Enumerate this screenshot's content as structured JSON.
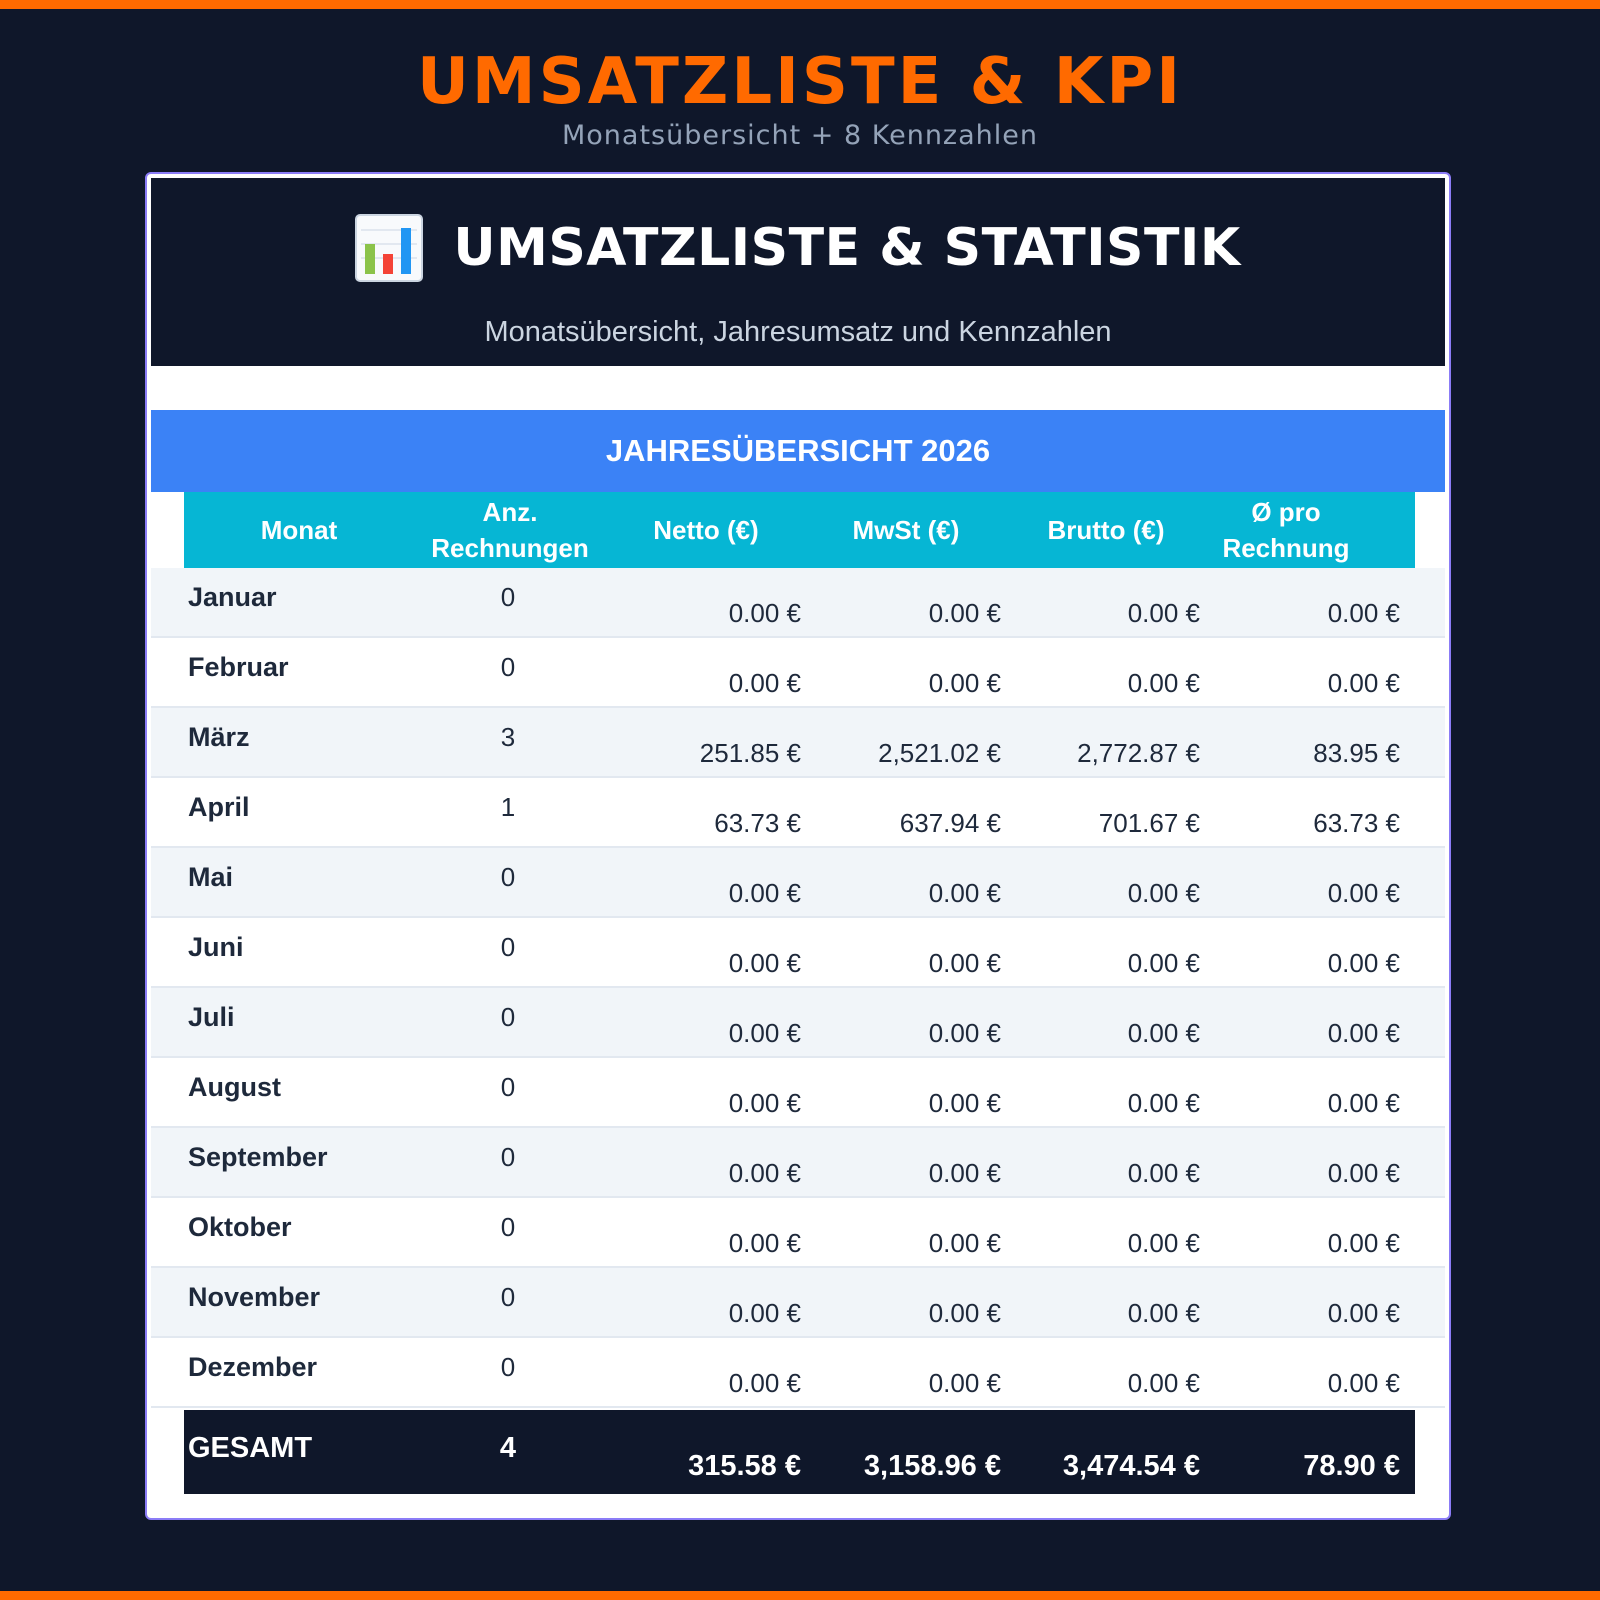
{
  "page": {
    "title": "UMSATZLISTE & KPI",
    "subtitle": "Monatsübersicht + 8 Kennzahlen"
  },
  "sheet": {
    "icon": "bar-chart-icon",
    "title": "UMSATZLISTE & STATISTIK",
    "subtitle": "Monatsübersicht, Jahresumsatz und Kennzahlen",
    "year_band": "JAHRESÜBERSICHT 2026"
  },
  "colors": {
    "accent": "#ff6a00",
    "background": "#0f172a",
    "band": "#3b82f6",
    "header": "#06b6d4"
  },
  "table": {
    "columns": {
      "month": "Monat",
      "count": "Anz. Rechnungen",
      "net": "Netto (€)",
      "vat": "MwSt (€)",
      "gross": "Brutto (€)",
      "avg": "Ø pro Rechnung"
    },
    "rows": [
      {
        "month": "Januar",
        "count": "0",
        "net": "0.00 €",
        "vat": "0.00 €",
        "gross": "0.00 €",
        "avg": "0.00 €"
      },
      {
        "month": "Februar",
        "count": "0",
        "net": "0.00 €",
        "vat": "0.00 €",
        "gross": "0.00 €",
        "avg": "0.00 €"
      },
      {
        "month": "März",
        "count": "3",
        "net": "251.85 €",
        "vat": "2,521.02 €",
        "gross": "2,772.87 €",
        "avg": "83.95 €"
      },
      {
        "month": "April",
        "count": "1",
        "net": "63.73 €",
        "vat": "637.94 €",
        "gross": "701.67 €",
        "avg": "63.73 €"
      },
      {
        "month": "Mai",
        "count": "0",
        "net": "0.00 €",
        "vat": "0.00 €",
        "gross": "0.00 €",
        "avg": "0.00 €"
      },
      {
        "month": "Juni",
        "count": "0",
        "net": "0.00 €",
        "vat": "0.00 €",
        "gross": "0.00 €",
        "avg": "0.00 €"
      },
      {
        "month": "Juli",
        "count": "0",
        "net": "0.00 €",
        "vat": "0.00 €",
        "gross": "0.00 €",
        "avg": "0.00 €"
      },
      {
        "month": "August",
        "count": "0",
        "net": "0.00 €",
        "vat": "0.00 €",
        "gross": "0.00 €",
        "avg": "0.00 €"
      },
      {
        "month": "September",
        "count": "0",
        "net": "0.00 €",
        "vat": "0.00 €",
        "gross": "0.00 €",
        "avg": "0.00 €"
      },
      {
        "month": "Oktober",
        "count": "0",
        "net": "0.00 €",
        "vat": "0.00 €",
        "gross": "0.00 €",
        "avg": "0.00 €"
      },
      {
        "month": "November",
        "count": "0",
        "net": "0.00 €",
        "vat": "0.00 €",
        "gross": "0.00 €",
        "avg": "0.00 €"
      },
      {
        "month": "Dezember",
        "count": "0",
        "net": "0.00 €",
        "vat": "0.00 €",
        "gross": "0.00 €",
        "avg": "0.00 €"
      }
    ],
    "total": {
      "label": "GESAMT",
      "count": "4",
      "net": "315.58 €",
      "vat": "3,158.96 €",
      "gross": "3,474.54 €",
      "avg": "78.90 €"
    }
  }
}
